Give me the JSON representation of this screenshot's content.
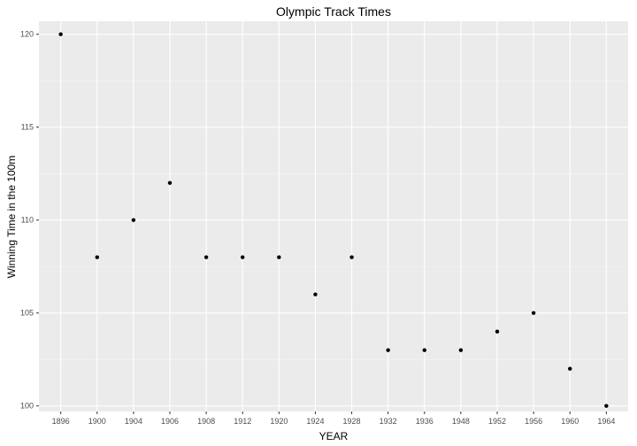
{
  "chart_data": {
    "type": "scatter",
    "title": "Olympic Track Times",
    "xlabel": "YEAR",
    "ylabel": "Winning Time in the 100m",
    "x_is_categorical": true,
    "categories": [
      "1896",
      "1900",
      "1904",
      "1906",
      "1908",
      "1912",
      "1920",
      "1924",
      "1928",
      "1932",
      "1936",
      "1948",
      "1952",
      "1956",
      "1960",
      "1964"
    ],
    "values": [
      120,
      108,
      110,
      112,
      108,
      108,
      108,
      106,
      108,
      103,
      103,
      103,
      104,
      105,
      102,
      100
    ],
    "ylim": [
      99.7,
      120.7
    ],
    "y_ticks": [
      100,
      105,
      110,
      115,
      120
    ],
    "grid": true,
    "legend": "none",
    "colors": {
      "panel_background": "#ebebeb",
      "grid_major": "#ffffff",
      "grid_minor": "#f5f5f5",
      "point": "#000000",
      "tick_text": "#4d4d4d",
      "tick_mark": "#333333"
    }
  }
}
